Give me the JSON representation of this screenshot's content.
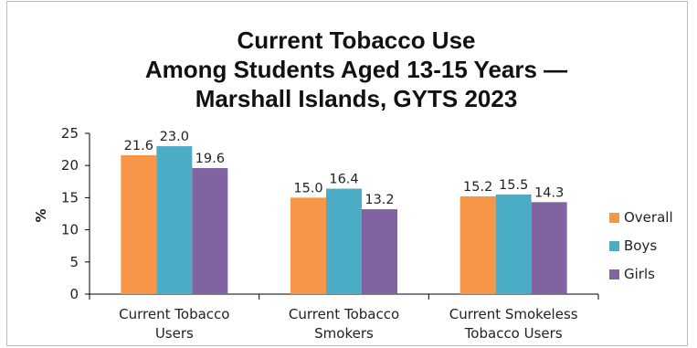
{
  "chart_data": {
    "type": "bar",
    "title_lines": [
      "Current Tobacco Use",
      "Among Students Aged 13-15 Years —",
      "Marshall Islands, GYTS 2023"
    ],
    "ylabel": "%",
    "ylim": [
      0,
      25
    ],
    "yticks": [
      "0",
      "5",
      "10",
      "15",
      "20",
      "25"
    ],
    "categories": [
      [
        "Current Tobacco",
        "Users"
      ],
      [
        "Current Tobacco",
        "Smokers"
      ],
      [
        "Current Smokeless",
        "Tobacco Users"
      ]
    ],
    "series": [
      {
        "name": "Overall",
        "color": "#f79646",
        "values": [
          21.6,
          15.0,
          15.2
        ],
        "labels": [
          "21.6",
          "15.0",
          "15.2"
        ]
      },
      {
        "name": "Boys",
        "color": "#4bacc6",
        "values": [
          23.0,
          16.4,
          15.5
        ],
        "labels": [
          "23.0",
          "16.4",
          "15.5"
        ]
      },
      {
        "name": "Girls",
        "color": "#8064a2",
        "values": [
          19.6,
          13.2,
          14.3
        ],
        "labels": [
          "19.6",
          "13.2",
          "14.3"
        ]
      }
    ],
    "legend_position": "right",
    "grid": false
  }
}
